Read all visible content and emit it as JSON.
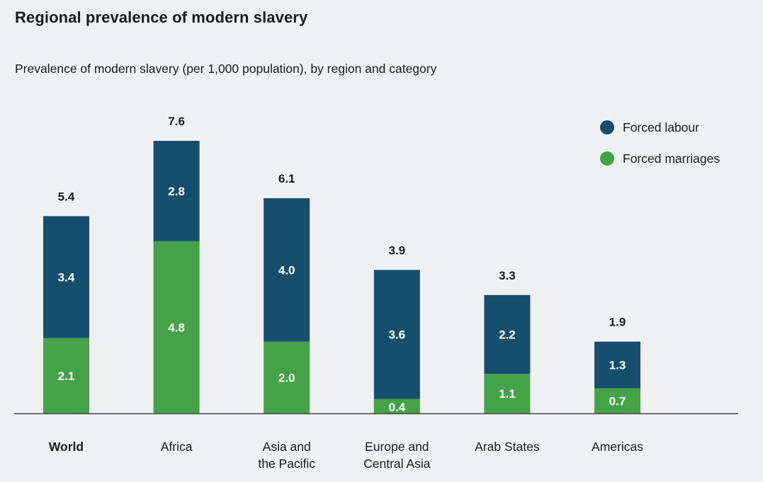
{
  "chart_data": {
    "type": "bar",
    "stacked": true,
    "title": "Regional prevalence of modern slavery",
    "subtitle": "Prevalence of modern slavery (per 1,000 population), by region and category",
    "xlabel": "",
    "ylabel": "",
    "ylim": [
      0,
      7.6
    ],
    "grid": false,
    "legend_position": "top-right",
    "categories": [
      "World",
      "Africa",
      "Asia and the Pacific",
      "Europe and Central Asia",
      "Arab States",
      "Americas"
    ],
    "category_lines": [
      [
        "World"
      ],
      [
        "Africa"
      ],
      [
        "Asia and",
        "the Pacific"
      ],
      [
        "Europe and",
        "Central Asia"
      ],
      [
        "Arab States"
      ],
      [
        "Americas"
      ]
    ],
    "bold_categories": [
      "World"
    ],
    "totals": [
      5.4,
      7.6,
      6.1,
      3.9,
      3.3,
      1.9
    ],
    "series": [
      {
        "name": "Forced marriages",
        "color": "#43a346",
        "values": [
          2.1,
          4.8,
          2.0,
          0.4,
          1.1,
          0.7
        ]
      },
      {
        "name": "Forced labour",
        "color": "#164e6e",
        "values": [
          3.4,
          2.8,
          4.0,
          3.6,
          2.2,
          1.3
        ]
      }
    ],
    "legend": [
      {
        "label": "Forced labour",
        "color": "#164e6e"
      },
      {
        "label": "Forced marriages",
        "color": "#43a346"
      }
    ]
  }
}
